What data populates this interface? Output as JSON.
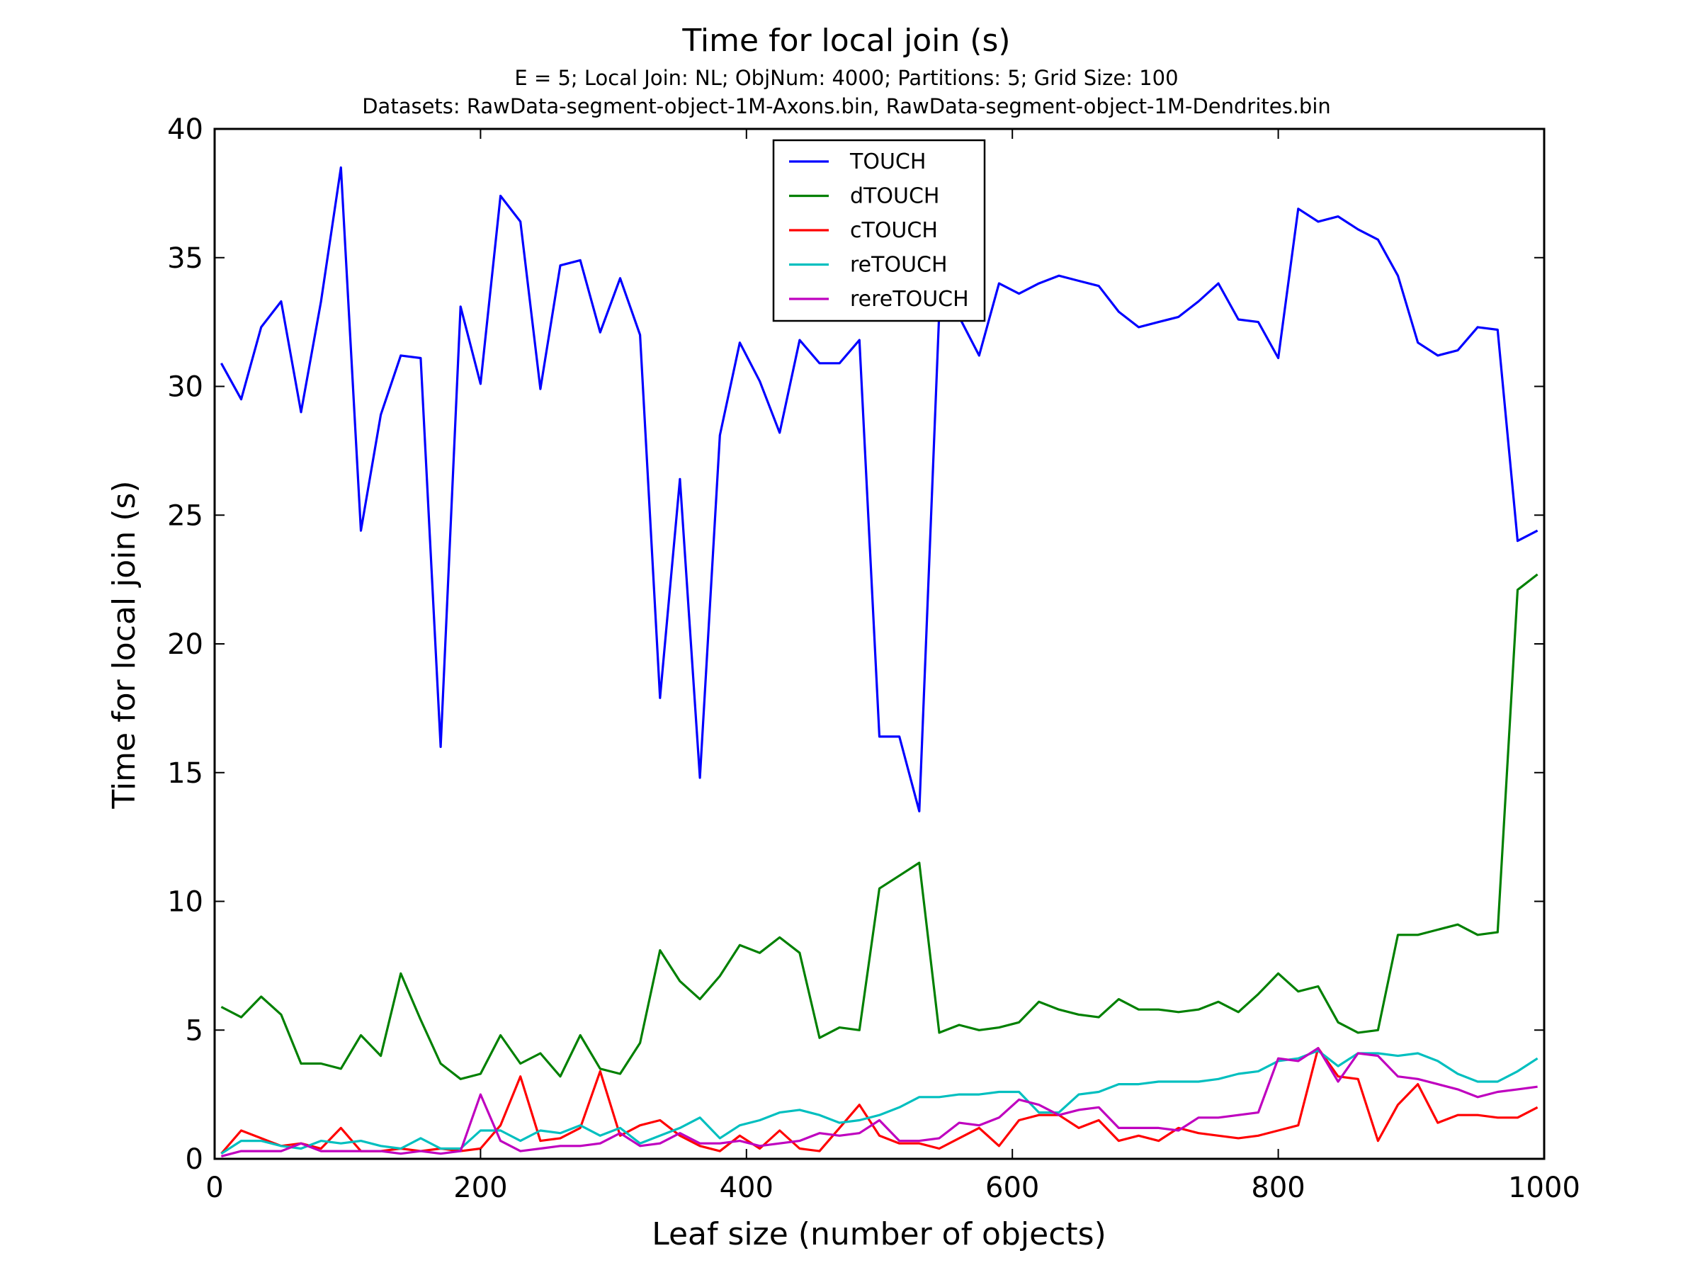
{
  "chart_data": {
    "type": "line",
    "title": "Time for local join (s)",
    "subtitle_lines": [
      "E = 5; Local Join: NL; ObjNum: 4000; Partitions: 5; Grid Size: 100",
      "Datasets: RawData-segment-object-1M-Axons.bin, RawData-segment-object-1M-Dendrites.bin"
    ],
    "xlabel": "Leaf size (number of objects)",
    "ylabel": "Time for local join (s)",
    "xlim": [
      0,
      1000
    ],
    "ylim": [
      0,
      40
    ],
    "xticks": [
      "0",
      "200",
      "400",
      "600",
      "800",
      "1000"
    ],
    "yticks": [
      "0",
      "5",
      "10",
      "15",
      "20",
      "25",
      "30",
      "35",
      "40"
    ],
    "grid": false,
    "legend_position": "top-center",
    "x": [
      5,
      20,
      35,
      50,
      65,
      80,
      95,
      110,
      125,
      140,
      155,
      170,
      185,
      200,
      215,
      230,
      245,
      260,
      275,
      290,
      305,
      320,
      335,
      350,
      365,
      380,
      395,
      410,
      425,
      440,
      455,
      470,
      485,
      500,
      515,
      530,
      545,
      560,
      575,
      590,
      605,
      620,
      635,
      650,
      665,
      680,
      695,
      710,
      725,
      740,
      755,
      770,
      785,
      800,
      815,
      830,
      845,
      860,
      875,
      890,
      905,
      920,
      935,
      950,
      965,
      980,
      995
    ],
    "series": [
      {
        "name": "TOUCH",
        "color": "#0000ff",
        "values": [
          30.9,
          29.5,
          32.3,
          33.3,
          29.0,
          33.3,
          38.5,
          24.4,
          28.9,
          31.2,
          31.1,
          16.0,
          33.1,
          30.1,
          37.4,
          36.4,
          29.9,
          34.7,
          34.9,
          32.1,
          34.2,
          32.0,
          17.9,
          26.4,
          14.8,
          28.1,
          31.7,
          30.2,
          28.2,
          31.8,
          30.9,
          30.9,
          31.8,
          16.4,
          16.4,
          13.5,
          32.9,
          32.7,
          31.2,
          34.0,
          33.6,
          34.0,
          34.3,
          34.1,
          33.9,
          32.9,
          32.3,
          32.5,
          32.7,
          33.3,
          34.0,
          32.6,
          32.5,
          31.1,
          36.9,
          36.4,
          36.6,
          36.1,
          35.7,
          34.3,
          31.7,
          31.2,
          31.4,
          32.3,
          32.2,
          24.0,
          24.4
        ]
      },
      {
        "name": "dTOUCH",
        "color": "#008000",
        "values": [
          5.9,
          5.5,
          6.3,
          5.6,
          3.7,
          3.7,
          3.5,
          4.8,
          4.0,
          7.2,
          5.4,
          3.7,
          3.1,
          3.3,
          4.8,
          3.7,
          4.1,
          3.2,
          4.8,
          3.5,
          3.3,
          4.5,
          8.1,
          6.9,
          6.2,
          7.1,
          8.3,
          8.0,
          8.6,
          8.0,
          4.7,
          5.1,
          5.0,
          10.5,
          11.0,
          11.5,
          4.9,
          5.2,
          5.0,
          5.1,
          5.3,
          6.1,
          5.8,
          5.6,
          5.5,
          6.2,
          5.8,
          5.8,
          5.7,
          5.8,
          6.1,
          5.7,
          6.4,
          7.2,
          6.5,
          6.7,
          5.3,
          4.9,
          5.0,
          8.7,
          8.7,
          8.9,
          9.1,
          8.7,
          8.8,
          22.1,
          22.7
        ]
      },
      {
        "name": "cTOUCH",
        "color": "#ff0000",
        "values": [
          0.2,
          1.1,
          0.8,
          0.5,
          0.6,
          0.4,
          1.2,
          0.3,
          0.3,
          0.4,
          0.3,
          0.4,
          0.3,
          0.4,
          1.3,
          3.2,
          0.7,
          0.8,
          1.2,
          3.4,
          0.9,
          1.3,
          1.5,
          0.9,
          0.5,
          0.3,
          0.9,
          0.4,
          1.1,
          0.4,
          0.3,
          1.2,
          2.1,
          0.9,
          0.6,
          0.6,
          0.4,
          0.8,
          1.2,
          0.5,
          1.5,
          1.7,
          1.7,
          1.2,
          1.5,
          0.7,
          0.9,
          0.7,
          1.2,
          1.0,
          0.9,
          0.8,
          0.9,
          1.1,
          1.3,
          4.3,
          3.2,
          3.1,
          0.7,
          2.1,
          2.9,
          1.4,
          1.7,
          1.7,
          1.6,
          1.6,
          2.0
        ]
      },
      {
        "name": "reTOUCH",
        "color": "#00bfbf",
        "values": [
          0.2,
          0.7,
          0.7,
          0.5,
          0.4,
          0.7,
          0.6,
          0.7,
          0.5,
          0.4,
          0.8,
          0.4,
          0.4,
          1.1,
          1.1,
          0.7,
          1.1,
          1.0,
          1.3,
          0.9,
          1.2,
          0.6,
          0.9,
          1.2,
          1.6,
          0.8,
          1.3,
          1.5,
          1.8,
          1.9,
          1.7,
          1.4,
          1.5,
          1.7,
          2.0,
          2.4,
          2.4,
          2.5,
          2.5,
          2.6,
          2.6,
          1.8,
          1.8,
          2.5,
          2.6,
          2.9,
          2.9,
          3.0,
          3.0,
          3.0,
          3.1,
          3.3,
          3.4,
          3.8,
          3.9,
          4.2,
          3.6,
          4.1,
          4.1,
          4.0,
          4.1,
          3.8,
          3.3,
          3.0,
          3.0,
          3.4,
          3.9
        ]
      },
      {
        "name": "rereTOUCH",
        "color": "#bf00bf",
        "values": [
          0.1,
          0.3,
          0.3,
          0.3,
          0.6,
          0.3,
          0.3,
          0.3,
          0.3,
          0.2,
          0.3,
          0.2,
          0.3,
          2.5,
          0.7,
          0.3,
          0.4,
          0.5,
          0.5,
          0.6,
          1.0,
          0.5,
          0.6,
          1.0,
          0.6,
          0.6,
          0.7,
          0.5,
          0.6,
          0.7,
          1.0,
          0.9,
          1.0,
          1.5,
          0.7,
          0.7,
          0.8,
          1.4,
          1.3,
          1.6,
          2.3,
          2.1,
          1.7,
          1.9,
          2.0,
          1.2,
          1.2,
          1.2,
          1.1,
          1.6,
          1.6,
          1.7,
          1.8,
          3.9,
          3.8,
          4.3,
          3.0,
          4.1,
          4.0,
          3.2,
          3.1,
          2.9,
          2.7,
          2.4,
          2.6,
          2.7,
          2.8
        ]
      }
    ]
  }
}
